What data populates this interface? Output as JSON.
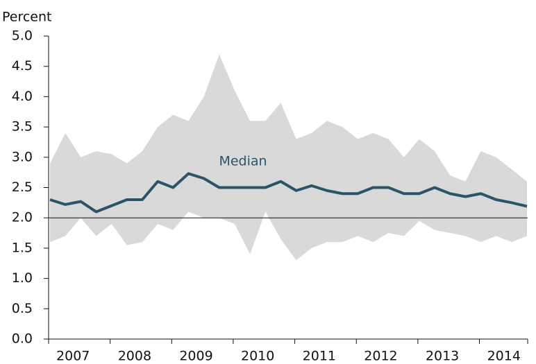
{
  "chart_data": {
    "type": "line",
    "y_axis_label": "Percent",
    "annotation": "Median",
    "categories": [
      null,
      null,
      null,
      null,
      null,
      null,
      null,
      null,
      null,
      null,
      null,
      null,
      null,
      null,
      null,
      null,
      null,
      null,
      null,
      null,
      null,
      null,
      null,
      null,
      null,
      null,
      null,
      null,
      null,
      null,
      null,
      null
    ],
    "xtick_labels": [
      "2007",
      "2008",
      "2009",
      "2010",
      "2011",
      "2012",
      "2013",
      "2014"
    ],
    "series": [
      {
        "name": "Median",
        "color": "#2b5566",
        "values": [
          2.3,
          2.22,
          2.27,
          2.1,
          2.2,
          2.3,
          2.3,
          2.6,
          2.5,
          2.73,
          2.65,
          2.5,
          2.5,
          2.5,
          2.5,
          2.6,
          2.45,
          2.53,
          2.45,
          2.4,
          2.4,
          2.5,
          2.5,
          2.4,
          2.4,
          2.5,
          2.4,
          2.35,
          2.4,
          2.3,
          2.25,
          2.19
        ]
      }
    ],
    "band": {
      "color": "#d9d9d9",
      "upper": [
        2.9,
        3.4,
        3.0,
        3.1,
        3.05,
        2.9,
        3.1,
        3.5,
        3.7,
        3.6,
        4.0,
        4.7,
        4.1,
        3.6,
        3.6,
        3.9,
        3.3,
        3.4,
        3.6,
        3.5,
        3.3,
        3.4,
        3.3,
        3.0,
        3.3,
        3.1,
        2.7,
        2.6,
        3.1,
        3.0,
        2.8,
        2.6
      ],
      "lower": [
        1.6,
        1.7,
        2.0,
        1.7,
        1.9,
        1.55,
        1.6,
        1.9,
        1.8,
        2.1,
        2.0,
        2.0,
        1.9,
        1.4,
        2.1,
        1.65,
        1.3,
        1.5,
        1.6,
        1.6,
        1.7,
        1.6,
        1.75,
        1.7,
        1.95,
        1.8,
        1.75,
        1.7,
        1.6,
        1.7,
        1.6,
        1.7
      ]
    },
    "reference_line": 2.0,
    "ylim": [
      0,
      5
    ],
    "yticks": [
      {
        "value": 0,
        "label": "0.0"
      },
      {
        "value": 0.5,
        "label": "0.5"
      },
      {
        "value": 1,
        "label": "1.0"
      },
      {
        "value": 1.5,
        "label": "1.5"
      },
      {
        "value": 2,
        "label": "2.0"
      },
      {
        "value": 2.5,
        "label": "2.5"
      },
      {
        "value": 3,
        "label": "3.0"
      },
      {
        "value": 3.5,
        "label": "3.5"
      },
      {
        "value": 4,
        "label": "4.0"
      },
      {
        "value": 4.5,
        "label": "4.5"
      },
      {
        "value": 5,
        "label": "5.0"
      }
    ],
    "grid": false
  }
}
